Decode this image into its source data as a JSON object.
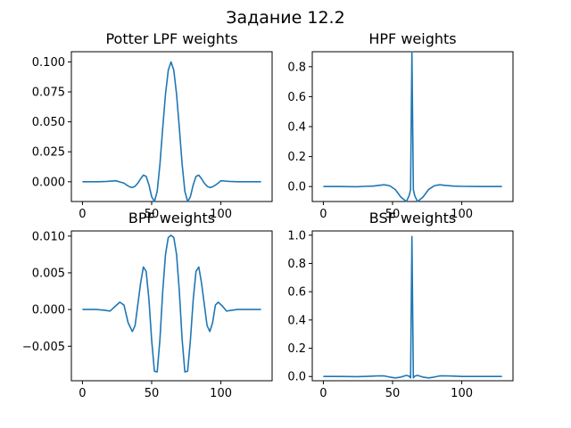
{
  "figure": {
    "suptitle": "Задание 12.2"
  },
  "colors": {
    "series": "#1f77b4"
  },
  "chart_data": [
    {
      "type": "line",
      "title": "Potter LPF weights",
      "xlabel": "",
      "ylabel": "",
      "xlim": [
        -8,
        137
      ],
      "ylim": [
        -0.0165,
        0.1085
      ],
      "xticks": [
        0,
        50,
        100
      ],
      "yticks": [
        0.0,
        0.025,
        0.05,
        0.075,
        0.1
      ],
      "ytick_labels": [
        "0.000",
        "0.025",
        "0.050",
        "0.075",
        "0.100"
      ],
      "grid": false,
      "series": [
        {
          "x": [
            0,
            6,
            12,
            18,
            24,
            30,
            32,
            34,
            36,
            38,
            40,
            42,
            44,
            46,
            48,
            50,
            52,
            54,
            56,
            58,
            60,
            62,
            64,
            66,
            68,
            70,
            72,
            74,
            76,
            78,
            80,
            82,
            84,
            86,
            88,
            90,
            92,
            94,
            96,
            98,
            100,
            106,
            112,
            118,
            124,
            129
          ],
          "y": [
            0.0,
            0.0,
            0.0,
            0.0003,
            0.0008,
            -0.0012,
            -0.0028,
            -0.0042,
            -0.0048,
            -0.0038,
            -0.0012,
            0.0025,
            0.0055,
            0.0045,
            -0.0025,
            -0.0125,
            -0.0165,
            -0.008,
            0.015,
            0.045,
            0.073,
            0.093,
            0.1,
            0.093,
            0.073,
            0.045,
            0.015,
            -0.008,
            -0.0165,
            -0.0125,
            -0.0025,
            0.0045,
            0.0055,
            0.0025,
            -0.0012,
            -0.0038,
            -0.0048,
            -0.0042,
            -0.0028,
            -0.0012,
            0.0008,
            0.0003,
            0.0,
            0.0,
            0.0,
            0.0
          ]
        }
      ]
    },
    {
      "type": "line",
      "title": "HPF weights",
      "xlabel": "",
      "ylabel": "",
      "xlim": [
        -8,
        137
      ],
      "ylim": [
        -0.1,
        0.9
      ],
      "xticks": [
        0,
        50,
        100
      ],
      "yticks": [
        0.0,
        0.2,
        0.4,
        0.6,
        0.8
      ],
      "ytick_labels": [
        "0.0",
        "0.2",
        "0.4",
        "0.6",
        "0.8"
      ],
      "grid": false,
      "series": [
        {
          "x": [
            0,
            12,
            24,
            30,
            36,
            40,
            44,
            48,
            52,
            56,
            60,
            62,
            63,
            64,
            65,
            66,
            68,
            72,
            76,
            80,
            84,
            88,
            94,
            100,
            112,
            129
          ],
          "y": [
            0.0,
            0.0,
            -0.001,
            0.001,
            0.003,
            0.008,
            0.012,
            0.005,
            -0.02,
            -0.07,
            -0.1,
            -0.06,
            -0.02,
            0.9,
            -0.02,
            -0.06,
            -0.1,
            -0.07,
            -0.02,
            0.005,
            0.012,
            0.008,
            0.003,
            0.001,
            0.0,
            0.0
          ]
        }
      ]
    },
    {
      "type": "line",
      "title": "BPF weights",
      "xlabel": "",
      "ylabel": "",
      "xlim": [
        -8,
        137
      ],
      "ylim": [
        -0.0097,
        0.0107
      ],
      "xticks": [
        0,
        50,
        100
      ],
      "yticks": [
        -0.005,
        0.0,
        0.005,
        0.01
      ],
      "ytick_labels": [
        "−0.005",
        "0.000",
        "0.005",
        "0.010"
      ],
      "grid": false,
      "series": [
        {
          "x": [
            0,
            10,
            16,
            20,
            24,
            27,
            30,
            33,
            36,
            38,
            40,
            42,
            44,
            46,
            48,
            50,
            52,
            54,
            56,
            58,
            60,
            62,
            64,
            66,
            68,
            70,
            72,
            74,
            76,
            78,
            80,
            82,
            84,
            86,
            88,
            90,
            92,
            94,
            96,
            98,
            101,
            104,
            108,
            112,
            118,
            129
          ],
          "y": [
            0.0,
            0.0,
            -0.0001,
            -0.0002,
            0.0005,
            0.001,
            0.0006,
            -0.0018,
            -0.003,
            -0.0022,
            0.0007,
            0.0036,
            0.0058,
            0.0052,
            0.0014,
            -0.0042,
            -0.0084,
            -0.0085,
            -0.004,
            0.0025,
            0.0075,
            0.0098,
            0.0101,
            0.0098,
            0.0075,
            0.0025,
            -0.004,
            -0.0085,
            -0.0084,
            -0.0042,
            0.0014,
            0.0052,
            0.0058,
            0.0036,
            0.0007,
            -0.0022,
            -0.003,
            -0.0018,
            0.0006,
            0.001,
            0.0005,
            -0.0002,
            -0.0001,
            0.0,
            0.0,
            0.0
          ]
        }
      ]
    },
    {
      "type": "line",
      "title": "BSF weights",
      "xlabel": "",
      "ylabel": "",
      "xlim": [
        -8,
        137
      ],
      "ylim": [
        -0.03,
        1.03
      ],
      "xticks": [
        0,
        50,
        100
      ],
      "yticks": [
        0.0,
        0.2,
        0.4,
        0.6,
        0.8,
        1.0
      ],
      "ytick_labels": [
        "0.0",
        "0.2",
        "0.4",
        "0.6",
        "0.8",
        "1.0"
      ],
      "grid": false,
      "series": [
        {
          "x": [
            0,
            12,
            24,
            30,
            36,
            40,
            44,
            48,
            52,
            56,
            60,
            62,
            63,
            64,
            65,
            66,
            68,
            72,
            76,
            80,
            84,
            88,
            94,
            100,
            112,
            129
          ],
          "y": [
            0.0,
            0.0,
            -0.001,
            0.0,
            0.003,
            0.005,
            0.004,
            -0.004,
            -0.01,
            -0.004,
            0.008,
            0.002,
            -0.01,
            0.99,
            -0.01,
            0.002,
            0.008,
            -0.004,
            -0.01,
            -0.004,
            0.004,
            0.005,
            0.003,
            0.0,
            0.0,
            0.0
          ]
        }
      ]
    }
  ]
}
